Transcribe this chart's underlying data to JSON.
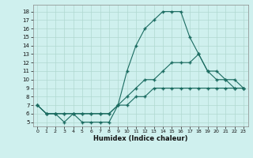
{
  "xlabel": "Humidex (Indice chaleur)",
  "background_color": "#cff0ee",
  "grid_color": "#b0d8d0",
  "line_color": "#1a6b60",
  "xlim": [
    -0.5,
    23.5
  ],
  "ylim": [
    4.5,
    18.8
  ],
  "xticks": [
    0,
    1,
    2,
    3,
    4,
    5,
    6,
    7,
    8,
    9,
    10,
    11,
    12,
    13,
    14,
    15,
    16,
    17,
    18,
    19,
    20,
    21,
    22,
    23
  ],
  "yticks": [
    5,
    6,
    7,
    8,
    9,
    10,
    11,
    12,
    13,
    14,
    15,
    16,
    17,
    18
  ],
  "line1_x": [
    0,
    1,
    2,
    3,
    4,
    5,
    6,
    7,
    8,
    9,
    10,
    11,
    12,
    13,
    14,
    15,
    16,
    17,
    18,
    19,
    20,
    21,
    22,
    23
  ],
  "line1_y": [
    7,
    6,
    6,
    5,
    6,
    5,
    5,
    5,
    5,
    7,
    11,
    14,
    16,
    17,
    18,
    18,
    18,
    15,
    13,
    11,
    10,
    10,
    9,
    9
  ],
  "line2_x": [
    0,
    1,
    2,
    3,
    4,
    5,
    6,
    7,
    8,
    9,
    10,
    11,
    12,
    13,
    14,
    15,
    16,
    17,
    18,
    19,
    20,
    21,
    22,
    23
  ],
  "line2_y": [
    7,
    6,
    6,
    6,
    6,
    6,
    6,
    6,
    6,
    7,
    8,
    9,
    10,
    10,
    11,
    12,
    12,
    12,
    13,
    11,
    11,
    10,
    10,
    9
  ],
  "line3_x": [
    0,
    1,
    2,
    3,
    4,
    5,
    6,
    7,
    8,
    9,
    10,
    11,
    12,
    13,
    14,
    15,
    16,
    17,
    18,
    19,
    20,
    21,
    22,
    23
  ],
  "line3_y": [
    7,
    6,
    6,
    6,
    6,
    6,
    6,
    6,
    6,
    7,
    7,
    8,
    8,
    9,
    9,
    9,
    9,
    9,
    9,
    9,
    9,
    9,
    9,
    9
  ]
}
